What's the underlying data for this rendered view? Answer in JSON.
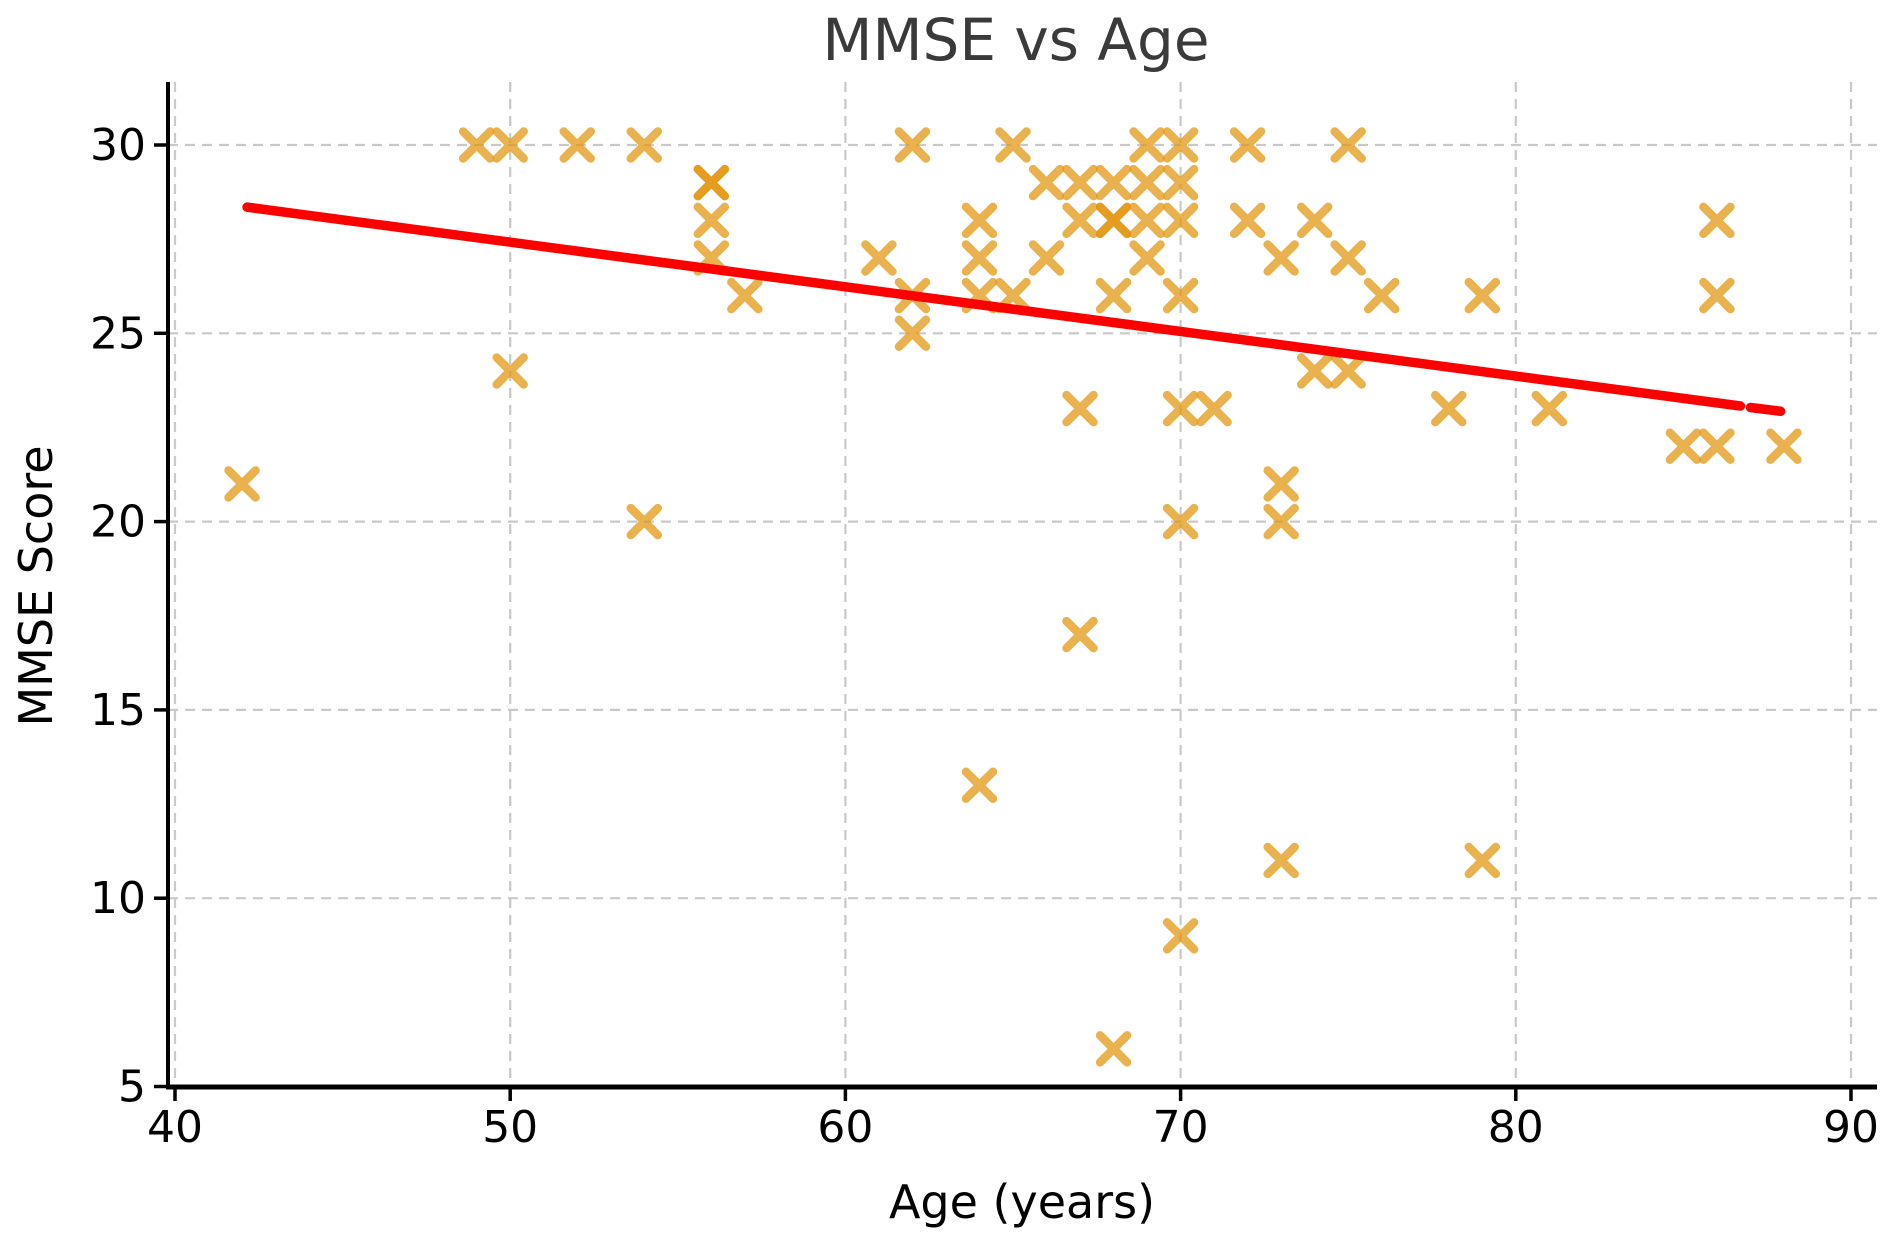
{
  "figure": {
    "title": "MMSE vs Age",
    "xlabel": "Age (years)",
    "ylabel": "MMSE Score"
  },
  "chart_data": {
    "type": "scatter",
    "title": "MMSE vs Age",
    "xlabel": "Age (years)",
    "ylabel": "MMSE Score",
    "xlim": [
      39.8,
      90.8
    ],
    "ylim": [
      5,
      31.7
    ],
    "xticks": [
      40,
      50,
      60,
      70,
      80,
      90
    ],
    "yticks": [
      5,
      10,
      15,
      20,
      25,
      30
    ],
    "grid": true,
    "legend": "none",
    "marker": "x",
    "points": [
      [
        42,
        21
      ],
      [
        49,
        30
      ],
      [
        50,
        30
      ],
      [
        50,
        24
      ],
      [
        52,
        30
      ],
      [
        54,
        30
      ],
      [
        54,
        20
      ],
      [
        56,
        29
      ],
      [
        56,
        29
      ],
      [
        56,
        28
      ],
      [
        56,
        27
      ],
      [
        57,
        26
      ],
      [
        61,
        27
      ],
      [
        62,
        30
      ],
      [
        62,
        26
      ],
      [
        62,
        25
      ],
      [
        64,
        28
      ],
      [
        64,
        27
      ],
      [
        64,
        26
      ],
      [
        64,
        13
      ],
      [
        65,
        30
      ],
      [
        65,
        26
      ],
      [
        66,
        29
      ],
      [
        66,
        27
      ],
      [
        67,
        29
      ],
      [
        67,
        28
      ],
      [
        67,
        23
      ],
      [
        67,
        17
      ],
      [
        68,
        29
      ],
      [
        68,
        28
      ],
      [
        68,
        28
      ],
      [
        68,
        26
      ],
      [
        68,
        6
      ],
      [
        69,
        30
      ],
      [
        69,
        29
      ],
      [
        69,
        28
      ],
      [
        69,
        27
      ],
      [
        70,
        30
      ],
      [
        70,
        29
      ],
      [
        70,
        28
      ],
      [
        70,
        26
      ],
      [
        70,
        23
      ],
      [
        70,
        20
      ],
      [
        70,
        9
      ],
      [
        71,
        23
      ],
      [
        72,
        30
      ],
      [
        72,
        28
      ],
      [
        73,
        27
      ],
      [
        73,
        21
      ],
      [
        73,
        20
      ],
      [
        73,
        11
      ],
      [
        74,
        28
      ],
      [
        74,
        24
      ],
      [
        75,
        30
      ],
      [
        75,
        27
      ],
      [
        75,
        24
      ],
      [
        76,
        26
      ],
      [
        78,
        23
      ],
      [
        79,
        26
      ],
      [
        79,
        11
      ],
      [
        81,
        23
      ],
      [
        85,
        22
      ],
      [
        86,
        28
      ],
      [
        86,
        26
      ],
      [
        86,
        22
      ],
      [
        88,
        22
      ]
    ],
    "trend_line": {
      "x1": 42.15,
      "y1": 28.35,
      "x2": 86.7,
      "y2": 23.07,
      "dash_x1": 87.0,
      "dash_y1": 23.03,
      "dash_x2": 87.9,
      "dash_y2": 22.93
    },
    "colors": {
      "marker": "#E2940B",
      "marker_opacity": 0.72,
      "trend": "#FF0000",
      "grid": "#c9c9c9",
      "spine": "#000000",
      "title": "#3a3a3a"
    }
  }
}
